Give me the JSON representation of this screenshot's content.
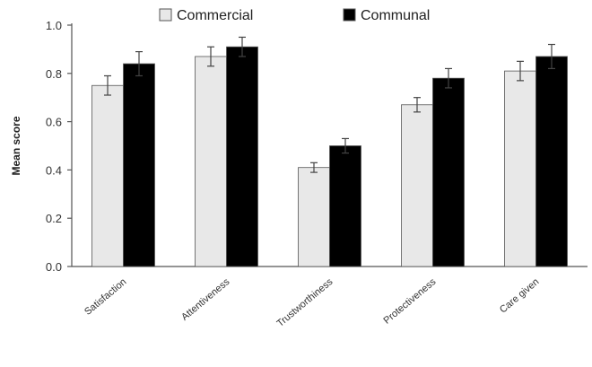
{
  "chart_data": {
    "type": "bar",
    "categories": [
      "Satisfaction",
      "Attentiveness",
      "Trustworthiness",
      "Protectiveness",
      "Care given"
    ],
    "series": [
      {
        "name": "Commercial",
        "values": [
          0.75,
          0.87,
          0.41,
          0.67,
          0.81
        ],
        "errors": [
          0.04,
          0.04,
          0.02,
          0.03,
          0.04
        ],
        "color": "#e8e8e8"
      },
      {
        "name": "Communal",
        "values": [
          0.84,
          0.91,
          0.5,
          0.78,
          0.87
        ],
        "errors": [
          0.05,
          0.04,
          0.03,
          0.04,
          0.05
        ],
        "color": "#000000"
      }
    ],
    "ylabel": "Mean score",
    "xlabel": "",
    "ylim": [
      0,
      1.0
    ],
    "yticks": [
      "0.0",
      "0.2",
      "0.4",
      "0.6",
      "0.8",
      "1.0"
    ],
    "legend_position": "top-center",
    "grid": false
  }
}
